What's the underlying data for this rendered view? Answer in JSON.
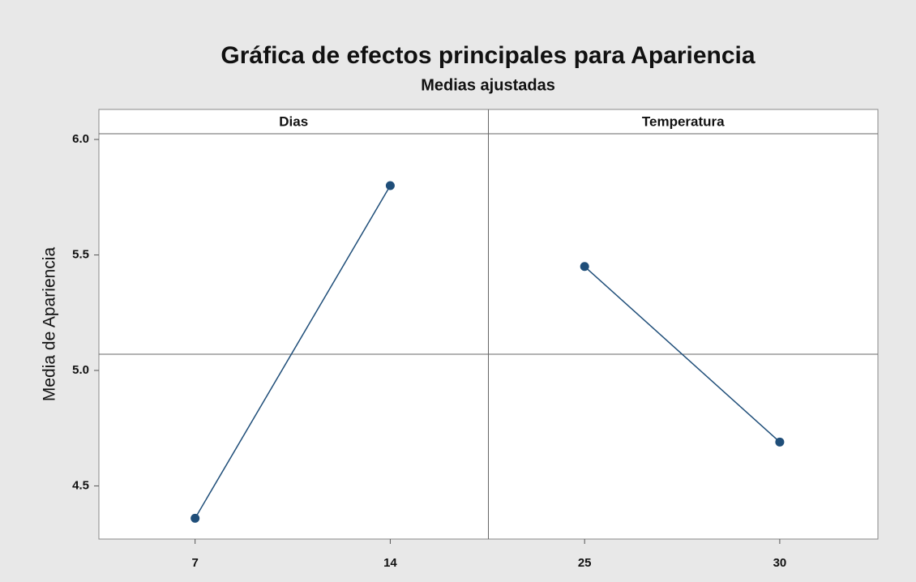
{
  "chart_data": {
    "type": "line",
    "title": "Gráfica de efectos principales para Apariencia",
    "subtitle": "Medias ajustadas",
    "ylabel": "Media de Apariencia",
    "ylim": [
      4.27,
      6.13
    ],
    "yticks": [
      {
        "value": 6.0,
        "label": "6.0"
      },
      5.5,
      {
        "value": 5.0,
        "label": "5.0"
      },
      4.5
    ],
    "reference": 5.07,
    "color": "#1f4e79",
    "panels": [
      {
        "label": "Dias",
        "categories": [
          "7",
          "14"
        ],
        "values": [
          4.36,
          5.8
        ]
      },
      {
        "label": "Temperatura",
        "categories": [
          "25",
          "30"
        ],
        "values": [
          5.45,
          4.69
        ]
      }
    ]
  }
}
